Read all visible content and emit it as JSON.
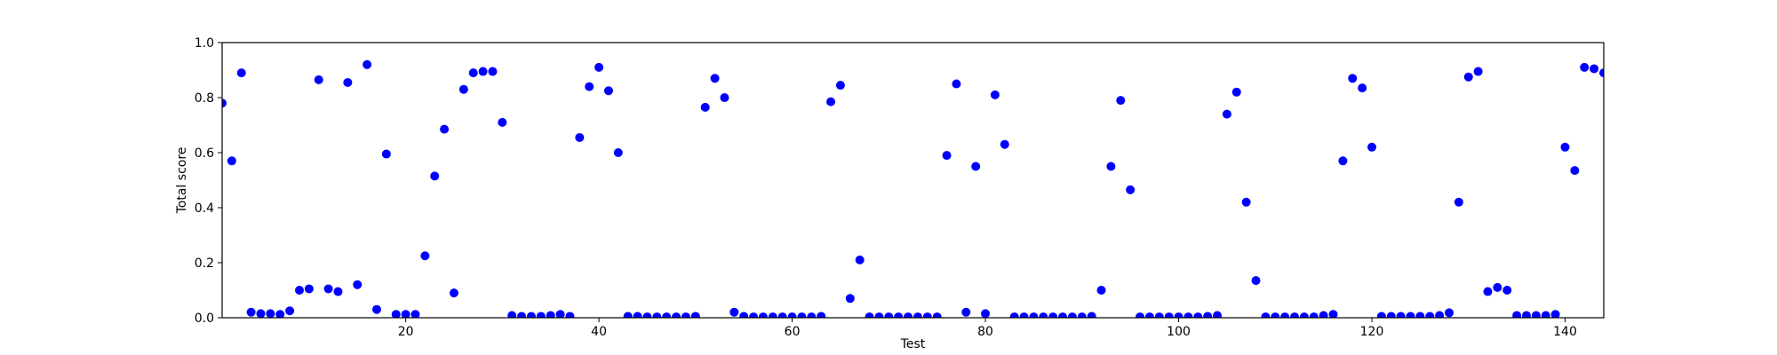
{
  "chart_data": {
    "type": "scatter",
    "title": "",
    "xlabel": "Test",
    "ylabel": "Total score",
    "xlim": [
      1,
      144
    ],
    "ylim": [
      0,
      1
    ],
    "x_ticks": [
      20,
      40,
      60,
      80,
      100,
      120,
      140
    ],
    "y_ticks": [
      0.0,
      0.2,
      0.4,
      0.6,
      0.8,
      1.0
    ],
    "grid": false,
    "marker_color": "#0000ff",
    "series": [
      {
        "x": [
          1,
          2,
          3,
          4,
          5,
          6,
          7,
          8,
          9,
          10,
          11,
          12,
          13,
          14,
          15,
          16,
          17,
          18,
          19,
          20,
          21,
          22,
          23,
          24,
          25,
          26,
          27,
          28,
          29,
          30,
          31,
          32,
          33,
          34,
          35,
          36,
          37,
          38,
          39,
          40,
          41,
          42,
          43,
          44,
          45,
          46,
          47,
          48,
          49,
          50,
          51,
          52,
          53,
          54,
          55,
          56,
          57,
          58,
          59,
          60,
          61,
          62,
          63,
          64,
          65,
          66,
          67,
          68,
          69,
          70,
          71,
          72,
          73,
          74,
          75,
          76,
          77,
          78,
          79,
          80,
          81,
          82,
          83,
          84,
          85,
          86,
          87,
          88,
          89,
          90,
          91,
          92,
          93,
          94,
          95,
          96,
          97,
          98,
          99,
          100,
          101,
          102,
          103,
          104,
          105,
          106,
          107,
          108,
          109,
          110,
          111,
          112,
          113,
          114,
          115,
          116,
          117,
          118,
          119,
          120,
          121,
          122,
          123,
          124,
          125,
          126,
          127,
          128,
          129,
          130,
          131,
          132,
          133,
          134,
          135,
          136,
          137,
          138,
          139,
          140,
          141,
          142,
          143,
          144
        ],
        "y": [
          0.78,
          0.57,
          0.89,
          0.02,
          0.015,
          0.015,
          0.012,
          0.025,
          0.1,
          0.105,
          0.865,
          0.105,
          0.095,
          0.855,
          0.12,
          0.92,
          0.03,
          0.595,
          0.012,
          0.012,
          0.012,
          0.225,
          0.515,
          0.685,
          0.09,
          0.83,
          0.89,
          0.895,
          0.895,
          0.71,
          0.008,
          0.005,
          0.005,
          0.005,
          0.008,
          0.012,
          0.005,
          0.655,
          0.84,
          0.91,
          0.825,
          0.6,
          0.005,
          0.005,
          0.003,
          0.003,
          0.003,
          0.003,
          0.003,
          0.005,
          0.765,
          0.87,
          0.8,
          0.02,
          0.005,
          0.003,
          0.003,
          0.003,
          0.003,
          0.003,
          0.003,
          0.003,
          0.005,
          0.785,
          0.845,
          0.07,
          0.21,
          0.003,
          0.003,
          0.003,
          0.003,
          0.003,
          0.003,
          0.003,
          0.003,
          0.59,
          0.85,
          0.02,
          0.55,
          0.015,
          0.81,
          0.63,
          0.003,
          0.003,
          0.003,
          0.003,
          0.003,
          0.003,
          0.003,
          0.003,
          0.005,
          0.1,
          0.55,
          0.79,
          0.465,
          0.003,
          0.003,
          0.003,
          0.003,
          0.003,
          0.003,
          0.003,
          0.005,
          0.008,
          0.74,
          0.82,
          0.42,
          0.135,
          0.003,
          0.003,
          0.003,
          0.003,
          0.003,
          0.003,
          0.008,
          0.012,
          0.57,
          0.87,
          0.835,
          0.62,
          0.005,
          0.005,
          0.005,
          0.005,
          0.005,
          0.005,
          0.008,
          0.018,
          0.42,
          0.875,
          0.895,
          0.095,
          0.11,
          0.1,
          0.008,
          0.008,
          0.008,
          0.008,
          0.012,
          0.62,
          0.535,
          0.91,
          0.905,
          0.89
        ]
      }
    ]
  }
}
